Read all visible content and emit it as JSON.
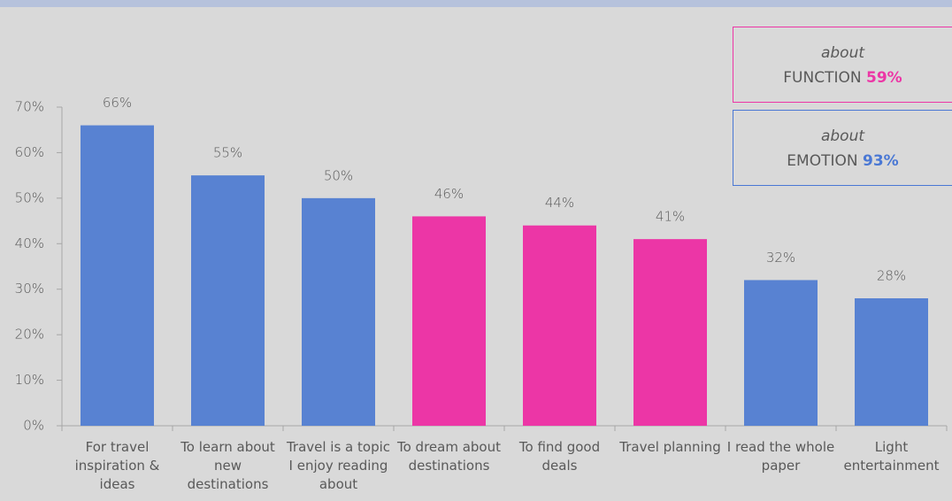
{
  "chart_data": {
    "type": "bar",
    "categories": [
      "For travel inspiration & ideas",
      "To learn about new destinations",
      "Travel is a topic I enjoy reading about",
      "To dream about destinations",
      "To find good deals",
      "Travel planning",
      "I read the whole paper",
      "Light entertainment"
    ],
    "values": [
      66,
      55,
      50,
      46,
      44,
      41,
      32,
      28
    ],
    "value_labels": [
      "66%",
      "55%",
      "50%",
      "46%",
      "44%",
      "41%",
      "32%",
      "28%"
    ],
    "colors": [
      "#5882d2",
      "#5882d2",
      "#5882d2",
      "#ec36a6",
      "#ec36a6",
      "#ec36a6",
      "#5882d2",
      "#5882d2"
    ],
    "ylim": [
      0,
      70
    ],
    "yticks": [
      {
        "value": 0,
        "label": "0%"
      },
      {
        "value": 10,
        "label": "10%"
      },
      {
        "value": 20,
        "label": "20%"
      },
      {
        "value": 30,
        "label": "30%"
      },
      {
        "value": 40,
        "label": "40%"
      },
      {
        "value": 50,
        "label": "50%"
      },
      {
        "value": 60,
        "label": "60%"
      },
      {
        "value": 70,
        "label": "70%"
      }
    ],
    "annotations": [
      {
        "prefix": "about",
        "text": "FUNCTION",
        "value": 59,
        "value_label": "59%",
        "color": "#ec36a6"
      },
      {
        "prefix": "about",
        "text": "EMOTION",
        "value": 93,
        "value_label": "93%",
        "color": "#4a78d4"
      }
    ]
  }
}
